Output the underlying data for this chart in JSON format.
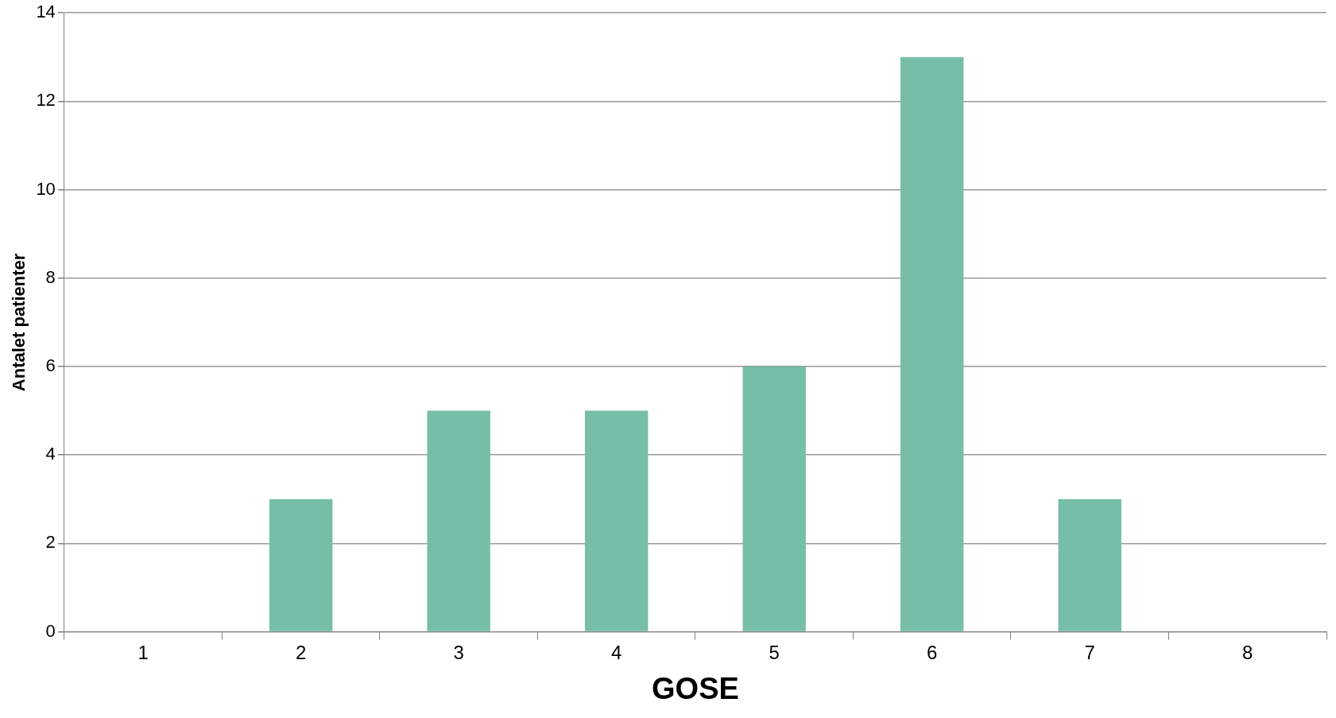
{
  "chart_data": {
    "type": "bar",
    "xlabel": "GOSE",
    "ylabel": "Antalet patienter",
    "categories": [
      "1",
      "2",
      "3",
      "4",
      "5",
      "6",
      "7",
      "8"
    ],
    "values": [
      0,
      3,
      5,
      5,
      6,
      13,
      3,
      0
    ],
    "color": "#76bea8",
    "ylim": [
      0,
      14
    ],
    "yticks": [
      0,
      2,
      4,
      6,
      8,
      10,
      12,
      14
    ],
    "grid": "y",
    "legend": false
  }
}
